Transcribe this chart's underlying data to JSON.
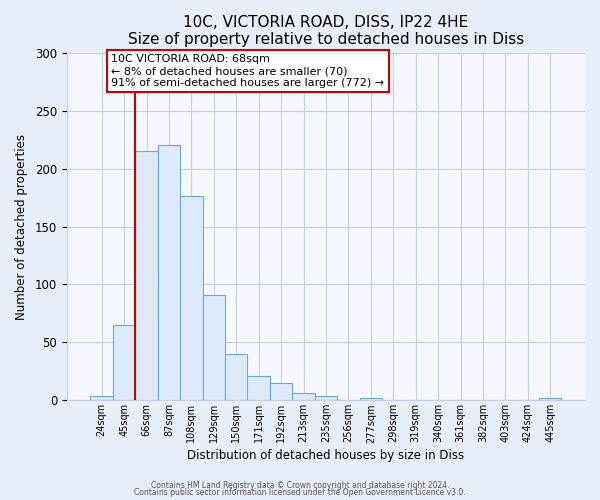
{
  "title": "10C, VICTORIA ROAD, DISS, IP22 4HE",
  "subtitle": "Size of property relative to detached houses in Diss",
  "xlabel": "Distribution of detached houses by size in Diss",
  "ylabel": "Number of detached properties",
  "bar_labels": [
    "24sqm",
    "45sqm",
    "66sqm",
    "87sqm",
    "108sqm",
    "129sqm",
    "150sqm",
    "171sqm",
    "192sqm",
    "213sqm",
    "235sqm",
    "256sqm",
    "277sqm",
    "298sqm",
    "319sqm",
    "340sqm",
    "361sqm",
    "382sqm",
    "403sqm",
    "424sqm",
    "445sqm"
  ],
  "bar_values": [
    4,
    65,
    215,
    220,
    176,
    91,
    40,
    21,
    15,
    6,
    4,
    0,
    2,
    0,
    0,
    0,
    0,
    0,
    0,
    0,
    2
  ],
  "bar_color": "#dce9f8",
  "bar_edgecolor": "#6aaad4",
  "vline_x": 1.5,
  "vline_color": "#cc0000",
  "annotation_line1": "10C VICTORIA ROAD: 68sqm",
  "annotation_line2": "← 8% of detached houses are smaller (70)",
  "annotation_line3": "91% of semi-detached houses are larger (772) →",
  "annotation_box_edgecolor": "#cc0000",
  "annotation_box_facecolor": "#ffffff",
  "ylim": [
    0,
    300
  ],
  "yticks": [
    0,
    50,
    100,
    150,
    200,
    250,
    300
  ],
  "footer1": "Contains HM Land Registry data © Crown copyright and database right 2024.",
  "footer2": "Contains public sector information licensed under the Open Government Licence v3.0.",
  "bg_color": "#e8eef8",
  "plot_bg_color": "#f5f8ff",
  "grid_color": "#c8d0e0",
  "title_fontsize": 11,
  "bar_width": 1.0
}
